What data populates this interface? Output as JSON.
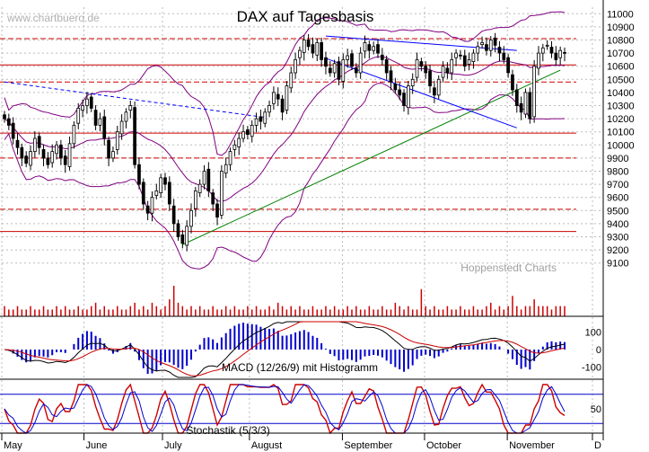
{
  "watermark": "www.chartbuero.de",
  "credit": "Hoppenstedt Charts",
  "colors": {
    "candle": "#000000",
    "bollinger": "#800080",
    "trendline_resistance": "#0000ff",
    "trendline_support": "#008000",
    "horizontal_level": "#cc0000",
    "volume": "#cc0000",
    "macd": "#000000",
    "signal": "#cc0000",
    "histogram": "#0000cc",
    "stoch_k": "#cc0000",
    "stoch_d": "#0000cc",
    "grid": "#bbbbbb"
  },
  "chart_data": [
    {
      "type": "candlestick",
      "title": "DAX auf Tagesbasis",
      "x_tick_labels": [
        "May",
        "June",
        "July",
        "August",
        "September",
        "October",
        "November",
        "D"
      ],
      "y_tick_labels": [
        "9100",
        "9200",
        "9300",
        "9400",
        "9500",
        "9600",
        "9700",
        "9800",
        "9900",
        "10000",
        "10100",
        "10200",
        "10300",
        "10400",
        "10500",
        "10600",
        "10700",
        "10800",
        "10900",
        "11000"
      ],
      "ylim": [
        9050,
        11050
      ],
      "grid": true,
      "horizontal_levels": [
        {
          "value": 10810,
          "style": "dashed"
        },
        {
          "value": 10610,
          "style": "solid"
        },
        {
          "value": 10480,
          "style": "dashed"
        },
        {
          "value": 10090,
          "style": "solid"
        },
        {
          "value": 9900,
          "style": "dashed"
        },
        {
          "value": 9510,
          "style": "dashed"
        },
        {
          "value": 9340,
          "style": "solid"
        }
      ],
      "trendlines": [
        {
          "kind": "resistance",
          "points": [
            [
              0,
              10480
            ],
            [
              60,
              10210
            ]
          ],
          "style": "dashed"
        },
        {
          "kind": "support",
          "points": [
            [
              41,
              9240
            ],
            [
              128,
              10570
            ]
          ],
          "style": "solid"
        },
        {
          "kind": "channel",
          "points": [
            [
              74,
              10830
            ],
            [
              118,
              10720
            ]
          ],
          "style": "solid"
        },
        {
          "kind": "channel",
          "points": [
            [
              74,
              10660
            ],
            [
              118,
              10130
            ]
          ],
          "style": "solid"
        }
      ],
      "closes": [
        10200,
        10150,
        10050,
        9980,
        9900,
        9860,
        9950,
        10050,
        9980,
        9900,
        9850,
        9950,
        10000,
        9900,
        9850,
        10010,
        10150,
        10280,
        10300,
        10350,
        10280,
        10150,
        10200,
        10050,
        9900,
        9950,
        10100,
        10180,
        10250,
        10300,
        9850,
        9700,
        9550,
        9480,
        9600,
        9650,
        9750,
        9700,
        9550,
        9400,
        9300,
        9250,
        9380,
        9500,
        9650,
        9700,
        9800,
        9650,
        9550,
        9450,
        9800,
        9850,
        9950,
        10000,
        10050,
        10100,
        10080,
        10150,
        10200,
        10180,
        10250,
        10300,
        10400,
        10350,
        10250,
        10450,
        10550,
        10650,
        10720,
        10800,
        10750,
        10700,
        10780,
        10650,
        10600,
        10550,
        10620,
        10500,
        10650,
        10680,
        10600,
        10550,
        10700,
        10780,
        10720,
        10750,
        10700,
        10650,
        10550,
        10480,
        10420,
        10380,
        10300,
        10450,
        10500,
        10650,
        10600,
        10550,
        10450,
        10380,
        10500,
        10600,
        10550,
        10650,
        10700,
        10680,
        10600,
        10650,
        10700,
        10750,
        10780,
        10720,
        10800,
        10760,
        10700,
        10650,
        10550,
        10420,
        10300,
        10250,
        10400,
        10200,
        10600,
        10700,
        10740,
        10760,
        10700,
        10650,
        10720,
        10700
      ],
      "highs_lows_spread": 60,
      "bollinger_bands": true
    },
    {
      "type": "bar",
      "name": "volume",
      "values": [
        3,
        2,
        2,
        3,
        2,
        2,
        3,
        2,
        2,
        3,
        2,
        2,
        3,
        2,
        3,
        2,
        2,
        3,
        2,
        2,
        3,
        4,
        2,
        3,
        2,
        2,
        3,
        2,
        2,
        3,
        4,
        2,
        3,
        2,
        4,
        3,
        2,
        3,
        5,
        9,
        4,
        3,
        2,
        3,
        2,
        3,
        2,
        2,
        3,
        2,
        2,
        3,
        2,
        3,
        2,
        2,
        3,
        2,
        3,
        2,
        2,
        3,
        2,
        4,
        3,
        2,
        3,
        2,
        3,
        2,
        2,
        3,
        2,
        2,
        3,
        2,
        3,
        2,
        2,
        3,
        2,
        3,
        2,
        2,
        3,
        2,
        2,
        3,
        2,
        2,
        4,
        3,
        2,
        3,
        2,
        2,
        8,
        3,
        2,
        3,
        2,
        2,
        3,
        2,
        2,
        3,
        2,
        2,
        3,
        2,
        2,
        3,
        4,
        2,
        3,
        2,
        3,
        6,
        3,
        2,
        3,
        3,
        5,
        3,
        3,
        3,
        2,
        3,
        3,
        3
      ]
    },
    {
      "type": "line",
      "title": "MACD (12/26/9) mit Histogramm",
      "y_tick_labels": [
        "100",
        "0",
        "-100"
      ],
      "ylim": [
        -160,
        160
      ]
    },
    {
      "type": "line",
      "title": "Stochastik (5/3/3)",
      "y_tick_labels": [
        "50"
      ],
      "ylim": [
        0,
        100
      ],
      "levels": [
        80,
        20
      ]
    }
  ]
}
